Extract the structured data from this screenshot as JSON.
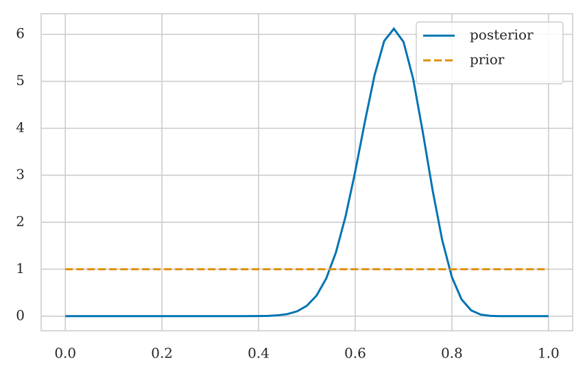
{
  "chart_data": {
    "type": "line",
    "series": [
      {
        "name": "posterior",
        "color": "#0173b2",
        "linestyle": "solid",
        "x": [
          0,
          0.1,
          0.2,
          0.3,
          0.36,
          0.4,
          0.42,
          0.44,
          0.46,
          0.48,
          0.5,
          0.52,
          0.54,
          0.56,
          0.58,
          0.6,
          0.62,
          0.64,
          0.66,
          0.68,
          0.7,
          0.72,
          0.74,
          0.76,
          0.78,
          0.8,
          0.82,
          0.84,
          0.86,
          0.88,
          0.9,
          0.95,
          1.0
        ],
        "values": [
          0,
          0,
          0,
          0,
          0.0002,
          0.0021,
          0.0063,
          0.018,
          0.045,
          0.104,
          0.223,
          0.439,
          0.803,
          1.355,
          2.124,
          3.08,
          4.14,
          5.13,
          5.86,
          6.12,
          5.84,
          5.05,
          3.91,
          2.69,
          1.62,
          0.834,
          0.358,
          0.123,
          0.032,
          0.006,
          0.0007,
          0,
          0
        ]
      },
      {
        "name": "prior",
        "color": "#de8f05",
        "linestyle": "dashed",
        "x": [
          0,
          1.0
        ],
        "values": [
          1,
          1
        ]
      }
    ],
    "xlim": [
      -0.05,
      1.05
    ],
    "xticks": [
      {
        "value": 0,
        "label": "0.0"
      },
      0.2,
      0.4,
      0.6,
      0.8,
      {
        "value": 1,
        "label": "1.0"
      }
    ],
    "ylim": [
      -0.31,
      6.44
    ],
    "yticks": [
      0,
      1,
      2,
      3,
      4,
      5,
      6
    ],
    "grid": true,
    "legend": "upper right"
  }
}
